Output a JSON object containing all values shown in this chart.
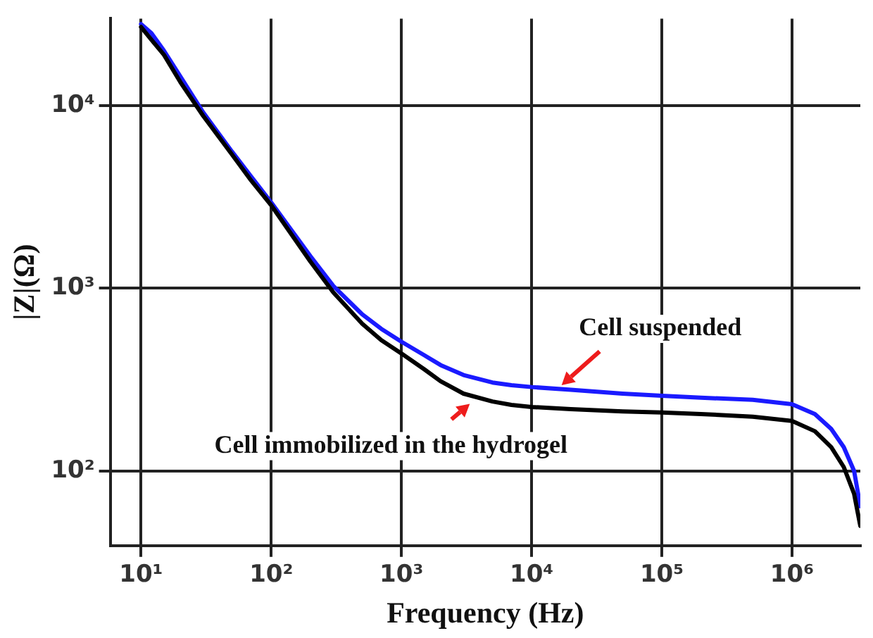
{
  "chart_data": {
    "type": "line",
    "xlabel": "Frequency (Hz)",
    "ylabel": "|Z|(Ω)",
    "log": "xy",
    "grid": true,
    "legend": false,
    "marker": "none",
    "line_style": "solid",
    "xlim": [
      5.8,
      3350000
    ],
    "ylim": [
      39,
      30000
    ],
    "xticks": [
      {
        "value": 10,
        "label": "10¹"
      },
      {
        "value": 100,
        "label": "10²"
      },
      {
        "value": 1000,
        "label": "10³"
      },
      {
        "value": 10000,
        "label": "10⁴"
      },
      {
        "value": 100000,
        "label": "10⁵"
      },
      {
        "value": 1000000,
        "label": "10⁶"
      }
    ],
    "yticks": [
      {
        "value": 100,
        "label": "10²"
      },
      {
        "value": 1000,
        "label": "10³"
      },
      {
        "value": 10000,
        "label": "10⁴"
      }
    ],
    "x": [
      10,
      12,
      15,
      20,
      30,
      50,
      70,
      100,
      200,
      300,
      500,
      700,
      1000,
      1500,
      2000,
      3000,
      5000,
      7000,
      10000,
      20000,
      50000,
      100000,
      200000,
      500000,
      1000000,
      1500000,
      2000000,
      2500000,
      3000000,
      3350000
    ],
    "series": [
      {
        "color": "#000000",
        "values": [
          27000,
          23000,
          19000,
          13500,
          8800,
          5400,
          3900,
          2850,
          1400,
          950,
          640,
          520,
          440,
          360,
          310,
          265,
          240,
          230,
          224,
          218,
          212,
          209,
          205,
          198,
          188,
          165,
          135,
          105,
          75,
          50
        ]
      },
      {
        "color": "#1a1aff",
        "values": [
          28000,
          25000,
          20000,
          14500,
          9200,
          5600,
          4100,
          2950,
          1500,
          1030,
          720,
          600,
          510,
          430,
          380,
          335,
          305,
          295,
          288,
          278,
          265,
          258,
          252,
          245,
          232,
          205,
          170,
          135,
          100,
          64
        ]
      }
    ],
    "annotations": [
      {
        "text": "Cell suspended",
        "x": 17000,
        "y": 295
      },
      {
        "text": "Cell immobilized in the hydrogel",
        "x": 3350,
        "y": 233
      }
    ]
  }
}
